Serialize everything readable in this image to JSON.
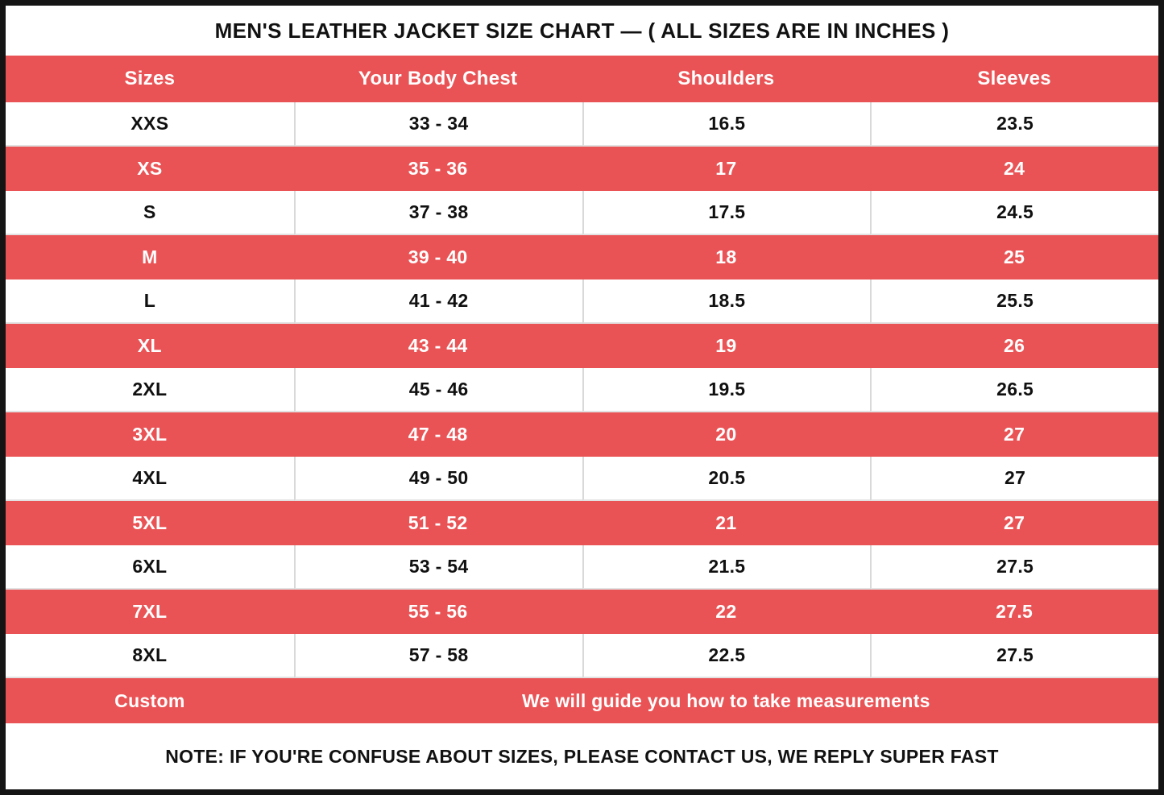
{
  "chart_data": {
    "type": "table",
    "title": "MEN'S LEATHER JACKET SIZE CHART — ( ALL SIZES ARE IN INCHES )",
    "columns": [
      "Sizes",
      "Your Body Chest",
      "Shoulders",
      "Sleeves"
    ],
    "rows": [
      [
        "XXS",
        "33 - 34",
        "16.5",
        "23.5"
      ],
      [
        "XS",
        "35 - 36",
        "17",
        "24"
      ],
      [
        "S",
        "37 - 38",
        "17.5",
        "24.5"
      ],
      [
        "M",
        "39 - 40",
        "18",
        "25"
      ],
      [
        "L",
        "41 - 42",
        "18.5",
        "25.5"
      ],
      [
        "XL",
        "43 - 44",
        "19",
        "26"
      ],
      [
        "2XL",
        "45 - 46",
        "19.5",
        "26.5"
      ],
      [
        "3XL",
        "47 - 48",
        "20",
        "27"
      ],
      [
        "4XL",
        "49 - 50",
        "20.5",
        "27"
      ],
      [
        "5XL",
        "51 - 52",
        "21",
        "27"
      ],
      [
        "6XL",
        "53 - 54",
        "21.5",
        "27.5"
      ],
      [
        "7XL",
        "55 - 56",
        "22",
        "27.5"
      ],
      [
        "8XL",
        "57 - 58",
        "22.5",
        "27.5"
      ]
    ],
    "custom_row": {
      "label": "Custom",
      "message": "We will guide you how to take measurements"
    },
    "note": "NOTE: IF YOU'RE CONFUSE ABOUT SIZES, PLEASE CONTACT US, WE REPLY SUPER FAST",
    "layout_hints": {
      "row_striping": "alternating white/red starting with white at XXS",
      "units": "inches"
    },
    "colors": {
      "stripe_red": "#EA5355",
      "frame_black": "#141414",
      "divider_gray": "#D9D9D9",
      "text_dark": "#111111",
      "text_light": "#FFFFFF"
    }
  }
}
